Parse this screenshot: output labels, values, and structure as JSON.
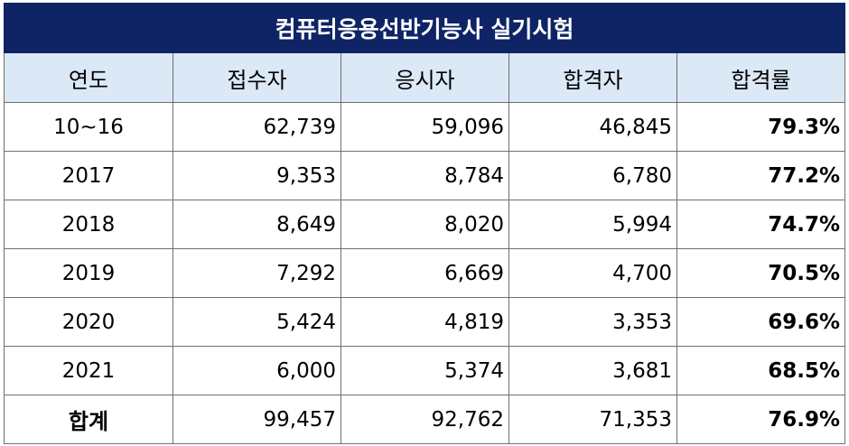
{
  "title": "컴퓨터응용선반기능사 실기시험",
  "headers": [
    "연도",
    "접수자",
    "응시자",
    "합격자",
    "합격률"
  ],
  "rows": [
    {
      "year": "10~16",
      "applicants": "62,739",
      "examinees": "59,096",
      "passed": "46,845",
      "rate": "79.3%"
    },
    {
      "year": "2017",
      "applicants": "9,353",
      "examinees": "8,784",
      "passed": "6,780",
      "rate": "77.2%"
    },
    {
      "year": "2018",
      "applicants": "8,649",
      "examinees": "8,020",
      "passed": "5,994",
      "rate": "74.7%"
    },
    {
      "year": "2019",
      "applicants": "7,292",
      "examinees": "6,669",
      "passed": "4,700",
      "rate": "70.5%"
    },
    {
      "year": "2020",
      "applicants": "5,424",
      "examinees": "4,819",
      "passed": "3,353",
      "rate": "69.6%"
    },
    {
      "year": "2021",
      "applicants": "6,000",
      "examinees": "5,374",
      "passed": "3,681",
      "rate": "68.5%"
    },
    {
      "year": "합계",
      "applicants": "99,457",
      "examinees": "92,762",
      "passed": "71,353",
      "rate": "76.9%"
    }
  ]
}
